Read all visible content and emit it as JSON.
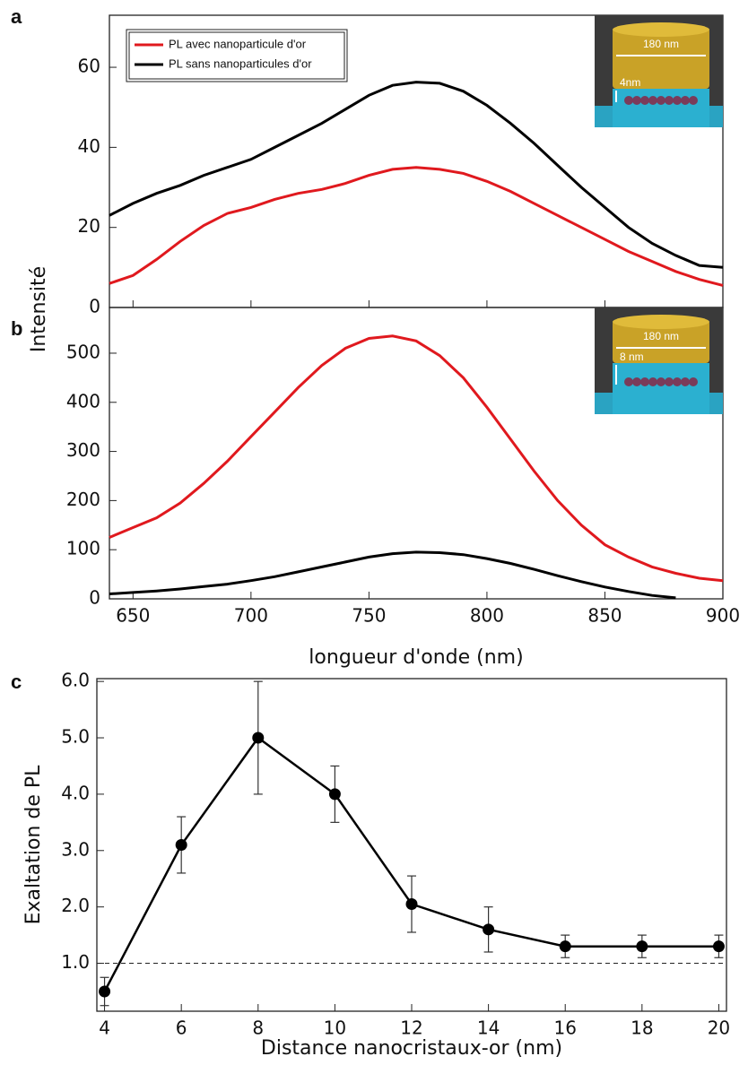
{
  "chart_data": [
    {
      "type": "line",
      "panel": "a",
      "ylabel": "Intensité",
      "x": [
        640,
        650,
        660,
        670,
        680,
        690,
        700,
        710,
        720,
        730,
        740,
        750,
        760,
        770,
        780,
        790,
        800,
        810,
        820,
        830,
        840,
        850,
        860,
        870,
        880,
        890,
        900
      ],
      "series": [
        {
          "name": "PL avec nanoparticule d'or",
          "color": "#e0191e",
          "values": [
            6,
            8,
            12,
            16.5,
            20.5,
            23.5,
            25,
            27,
            28.5,
            29.5,
            31,
            33,
            34.5,
            35,
            34.5,
            33.5,
            31.5,
            29,
            26,
            23,
            20,
            17,
            14,
            11.5,
            9,
            7,
            5.5
          ]
        },
        {
          "name": "PL sans nanoparticules d'or",
          "color": "#000000",
          "values": [
            23,
            26,
            28.5,
            30.5,
            33,
            35,
            37,
            40,
            43,
            46,
            49.5,
            53,
            55.5,
            56.3,
            56,
            54,
            50.5,
            46,
            41,
            35.5,
            30,
            25,
            20,
            16,
            13,
            10.5,
            10
          ]
        }
      ],
      "xlim": [
        640,
        900
      ],
      "ylim": [
        0,
        73
      ],
      "yticks": [
        0,
        20,
        40,
        60
      ],
      "inset": {
        "width_label": "180 nm",
        "gap_label": "4nm"
      }
    },
    {
      "type": "line",
      "panel": "b",
      "xlabel": "longueur d'onde (nm)",
      "x": [
        640,
        650,
        660,
        670,
        680,
        690,
        700,
        710,
        720,
        730,
        740,
        750,
        760,
        770,
        780,
        790,
        800,
        810,
        820,
        830,
        840,
        850,
        860,
        870,
        880,
        890,
        900
      ],
      "series": [
        {
          "color": "#e0191e",
          "values": [
            125,
            145,
            165,
            195,
            235,
            280,
            330,
            380,
            430,
            475,
            510,
            530,
            535,
            525,
            495,
            450,
            390,
            325,
            260,
            200,
            150,
            110,
            85,
            65,
            52,
            42,
            37
          ]
        },
        {
          "color": "#000000",
          "values": [
            10,
            13,
            16,
            20,
            25,
            30,
            37,
            45,
            55,
            65,
            75,
            85,
            92,
            95,
            94,
            90,
            82,
            72,
            60,
            47,
            35,
            24,
            15,
            7,
            2,
            null,
            null
          ]
        }
      ],
      "xlim": [
        640,
        900
      ],
      "ylim": [
        0,
        593
      ],
      "xticks": [
        650,
        700,
        750,
        800,
        850,
        900
      ],
      "yticks": [
        0,
        100,
        200,
        300,
        400,
        500
      ],
      "inset": {
        "width_label": "180 nm",
        "gap_label": "8 nm"
      }
    },
    {
      "type": "line",
      "panel": "c",
      "xlabel": "Distance nanocristaux-or (nm)",
      "ylabel": "Exaltation de PL",
      "x": [
        4,
        6,
        8,
        10,
        12,
        14,
        16,
        18,
        20
      ],
      "series": [
        {
          "color": "#000000",
          "values": [
            0.5,
            3.1,
            5.0,
            4.0,
            2.05,
            1.6,
            1.3,
            1.3,
            1.3
          ],
          "errors": [
            0.25,
            0.5,
            1.0,
            0.5,
            0.5,
            0.4,
            0.2,
            0.2,
            0.2
          ]
        }
      ],
      "reference_line": 1.0,
      "xlim": [
        3.8,
        20.2
      ],
      "ylim": [
        0.15,
        6.05
      ],
      "xticks": [
        4,
        6,
        8,
        10,
        12,
        14,
        16,
        18,
        20
      ],
      "yticks": [
        {
          "value": 1,
          "label": "1.0"
        },
        {
          "value": 2,
          "label": "2.0"
        },
        {
          "value": 3,
          "label": "3.0"
        },
        {
          "value": 4,
          "label": "4.0"
        },
        {
          "value": 5,
          "label": "5.0"
        },
        {
          "value": 6,
          "label": "6.0"
        }
      ]
    }
  ]
}
